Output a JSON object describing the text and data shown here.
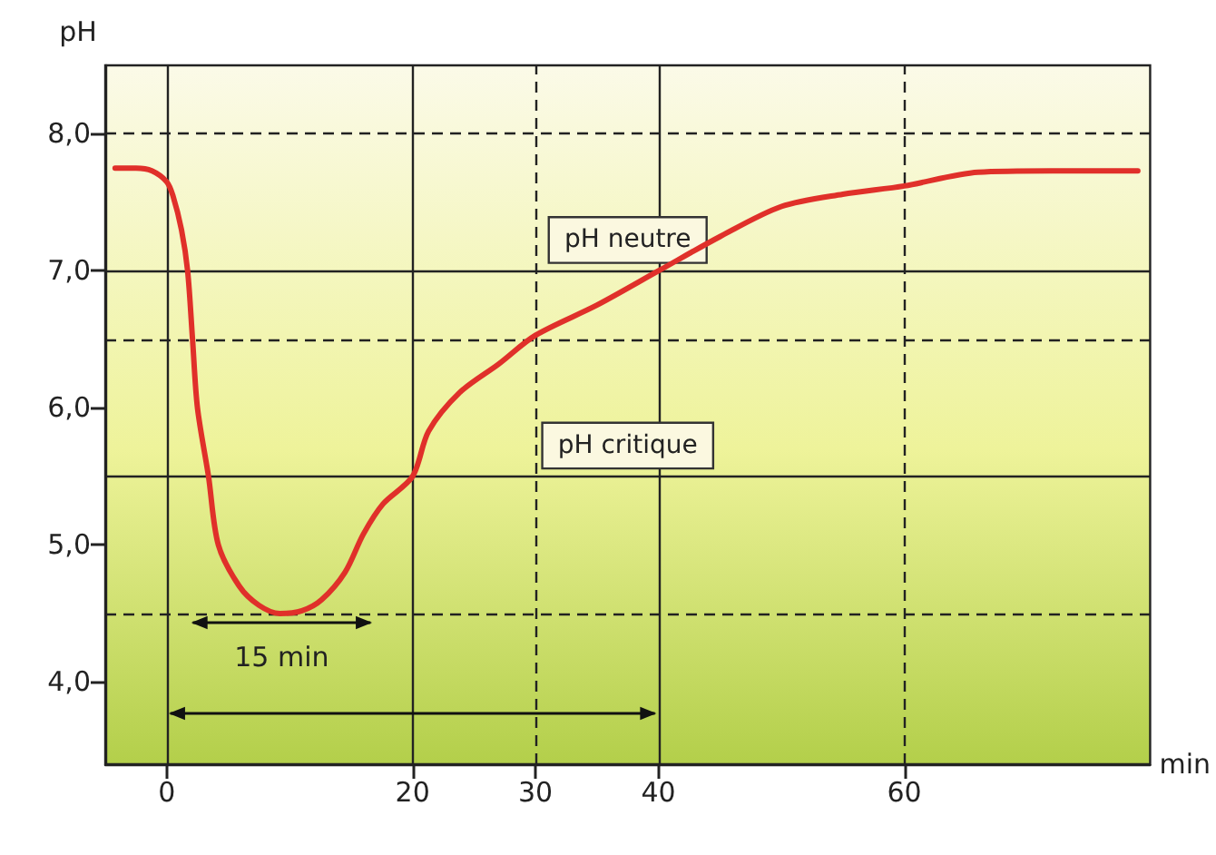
{
  "chart_data": {
    "type": "line",
    "xlabel": "min",
    "ylabel": "pH",
    "x": [
      -4.2,
      -2.5,
      -1.2,
      0,
      0.5,
      1.2,
      1.7,
      2.1,
      2.5,
      3.4,
      4.2,
      5.9,
      7.5,
      9.2,
      11,
      12.6,
      14.5,
      16,
      17.6,
      20,
      21.3,
      23.8,
      27,
      30,
      35,
      40,
      45,
      50,
      55,
      60,
      66,
      72,
      79
    ],
    "series": [
      {
        "color": "#e0302a",
        "values": [
          7.75,
          7.75,
          7.73,
          7.65,
          7.55,
          7.3,
          7.0,
          6.5,
          6.0,
          5.5,
          5.0,
          4.7,
          4.56,
          4.5,
          4.52,
          4.6,
          4.8,
          5.08,
          5.3,
          5.5,
          5.83,
          6.11,
          6.32,
          6.53,
          6.75,
          7.0,
          7.25,
          7.47,
          7.56,
          7.62,
          7.72,
          7.73,
          7.73
        ]
      }
    ],
    "xlim": [
      -5,
      80
    ],
    "xticks": [
      0,
      20,
      30,
      40,
      60
    ],
    "ylim": [
      3.4,
      8.5
    ],
    "yticks": [
      {
        "value": 4,
        "label": "4,0"
      },
      {
        "value": 5,
        "label": "5,0"
      },
      {
        "value": 6,
        "label": "6,0"
      },
      {
        "value": 7,
        "label": "7,0"
      },
      {
        "value": 8,
        "label": "8,0"
      }
    ],
    "grid": false,
    "marker": "none",
    "line_style": "solid",
    "ref_lines": [
      {
        "axis": "y",
        "value": 8,
        "line_style": "dashed"
      },
      {
        "axis": "y",
        "value": 7,
        "label": "pH neutre",
        "line_style": "solid"
      },
      {
        "axis": "y",
        "value": 6.5,
        "line_style": "dashed"
      },
      {
        "axis": "y",
        "value": 5.5,
        "label": "pH critique",
        "line_style": "solid"
      },
      {
        "axis": "y",
        "value": 4.5,
        "line_style": "dashed"
      },
      {
        "axis": "x",
        "value": 0,
        "line_style": "solid"
      },
      {
        "axis": "x",
        "value": 20,
        "line_style": "solid"
      },
      {
        "axis": "x",
        "value": 30,
        "line_style": "dashed"
      },
      {
        "axis": "x",
        "value": 40,
        "line_style": "solid"
      },
      {
        "axis": "x",
        "value": 60,
        "line_style": "dashed"
      }
    ],
    "annotations": [
      "15 min"
    ]
  }
}
